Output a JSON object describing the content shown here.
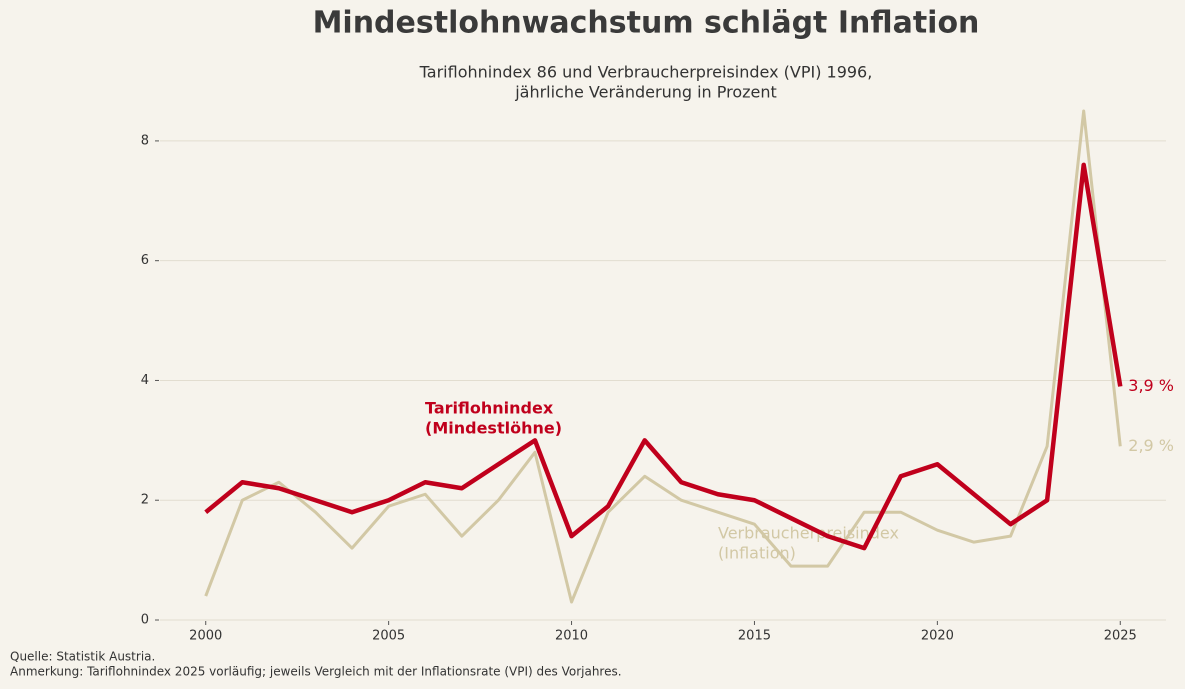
{
  "chart_data": {
    "type": "line",
    "title": "Mindestlohnwachstum schlägt Inflation",
    "subtitle": [
      "Tariflohnindex 86 und Verbraucherpreisindex (VPI) 1996,",
      "jährliche Veränderung in Prozent"
    ],
    "x": [
      2000,
      2001,
      2002,
      2003,
      2004,
      2005,
      2006,
      2007,
      2008,
      2009,
      2010,
      2011,
      2012,
      2013,
      2014,
      2015,
      2016,
      2017,
      2018,
      2019,
      2020,
      2021,
      2022,
      2023,
      2024,
      2025
    ],
    "series": [
      {
        "name": [
          "Verbraucherpreisindex",
          "(Inflation)"
        ],
        "color": "#d2c8a5",
        "values": [
          0.4,
          2.0,
          2.3,
          1.8,
          1.2,
          1.9,
          2.1,
          1.4,
          2.0,
          2.8,
          0.3,
          1.8,
          2.4,
          2.0,
          1.8,
          1.6,
          0.9,
          0.9,
          1.8,
          1.8,
          1.5,
          1.3,
          1.4,
          2.9,
          8.5,
          2.9
        ],
        "end_label": "2,9 %"
      },
      {
        "name": [
          "Tariflohnindex",
          "(Mindestlöhne)"
        ],
        "color": "#c0001c",
        "values": [
          1.8,
          2.3,
          2.2,
          2.0,
          1.8,
          2.0,
          2.3,
          2.2,
          2.6,
          3.0,
          1.4,
          1.9,
          3.0,
          2.3,
          2.1,
          2.0,
          1.7,
          1.4,
          1.2,
          2.4,
          2.6,
          2.1,
          1.6,
          2.0,
          7.6,
          3.9
        ],
        "end_label": "3,9 %"
      }
    ],
    "xlim": [
      1998.75,
      2026.25
    ],
    "xticks": [
      2000,
      2005,
      2010,
      2015,
      2020,
      2025
    ],
    "ylim": [
      0,
      8.8
    ],
    "yticks": [
      0,
      2,
      4,
      6,
      8
    ],
    "grid": true,
    "notes": [
      "Quelle: Statistik Austria.",
      "Anmerkung: Tariflohnindex 2025 vorläufig; jeweils Vergleich mit der Inflationsrate (VPI) des Vorjahres."
    ]
  }
}
